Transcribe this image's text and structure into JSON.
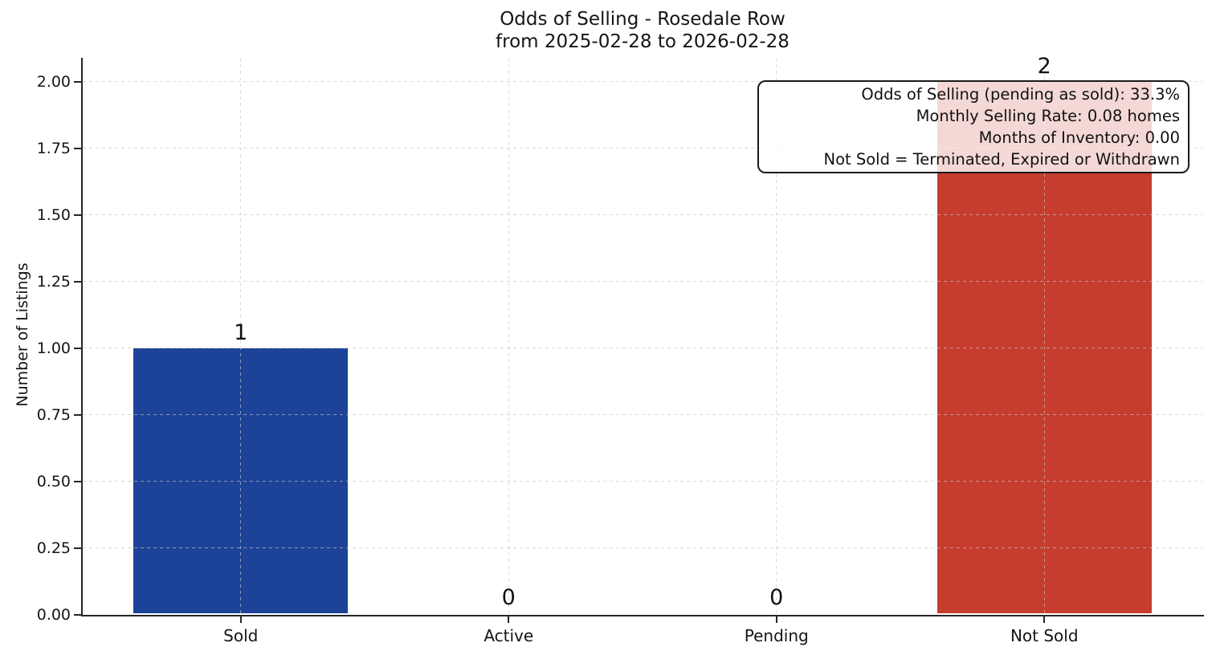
{
  "chart_data": {
    "type": "bar",
    "title": "Odds of Selling - Rosedale Row",
    "subtitle": "from 2025-02-28 to 2026-02-28",
    "categories": [
      "Sold",
      "Active",
      "Pending",
      "Not Sold"
    ],
    "values": [
      1,
      0,
      0,
      2
    ],
    "bar_value_labels": [
      "1",
      "0",
      "0",
      "2"
    ],
    "bar_colors": [
      "#1c4397",
      null,
      null,
      "#c63c2d"
    ],
    "xlabel": "",
    "ylabel": "Number of Listings",
    "ylim": [
      0,
      2.09
    ],
    "yticks": [
      0,
      0.25,
      0.5,
      0.75,
      1,
      1.25,
      1.5,
      1.75,
      2
    ],
    "ytick_labels": [
      "0.00",
      "0.25",
      "0.50",
      "0.75",
      "1.00",
      "1.25",
      "1.50",
      "1.75",
      "2.00"
    ],
    "grid": {
      "visible": true,
      "style": "dashed",
      "axes": "both",
      "color": "#c6c6c6"
    },
    "legend": null,
    "annotation": {
      "lines": [
        "Odds of Selling (pending as sold): 33.3%",
        "Monthly Selling Rate: 0.08 homes",
        "Months of Inventory: 0.00",
        "Not Sold = Terminated, Expired or Withdrawn"
      ]
    },
    "colors": {
      "sold_bar": "#1c4397",
      "not_sold_bar": "#c63c2d",
      "axis": "#262626",
      "text": "#111111",
      "background": "#ffffff"
    }
  }
}
